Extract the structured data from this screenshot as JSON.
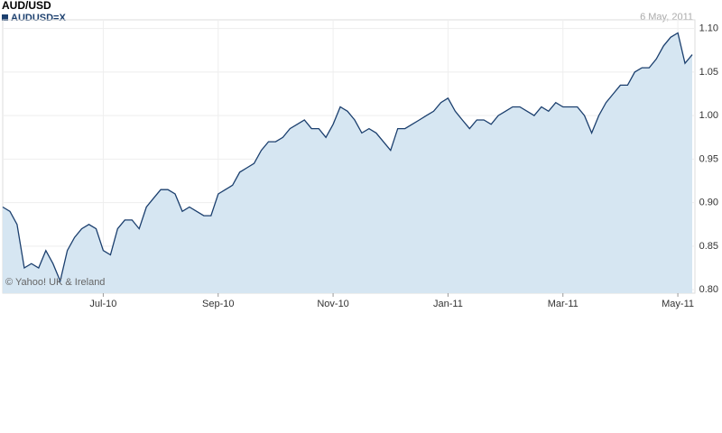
{
  "chart_data": {
    "type": "line",
    "title": "AUD/USD",
    "subtitle": "6 May, 2011",
    "annotation": "© Yahoo! UK & Ireland",
    "categories": [
      null,
      null,
      null,
      null,
      null,
      null,
      null,
      null,
      null,
      null,
      null,
      null,
      null,
      null,
      "Jul-10",
      null,
      null,
      null,
      null,
      null,
      null,
      null,
      null,
      null,
      null,
      null,
      null,
      null,
      null,
      null,
      "Sep-10",
      null,
      null,
      null,
      null,
      null,
      null,
      null,
      null,
      null,
      null,
      null,
      null,
      null,
      null,
      null,
      "Nov-10",
      null,
      null,
      null,
      null,
      null,
      null,
      null,
      null,
      null,
      null,
      null,
      null,
      null,
      null,
      null,
      "Jan-11",
      null,
      null,
      null,
      null,
      null,
      null,
      null,
      null,
      null,
      null,
      null,
      null,
      null,
      null,
      null,
      "Mar-11",
      null,
      null,
      null,
      null,
      null,
      null,
      null,
      null,
      null,
      null,
      null,
      null,
      null,
      null,
      null,
      "May-11",
      null,
      null
    ],
    "series": [
      {
        "name": "AUDUSD=X",
        "color": "#1b3f6e",
        "fill": "#d6e6f2",
        "values": [
          0.895,
          0.89,
          0.875,
          0.825,
          0.83,
          0.825,
          0.845,
          0.83,
          0.81,
          0.845,
          0.86,
          0.87,
          0.875,
          0.87,
          0.845,
          0.84,
          0.87,
          0.88,
          0.88,
          0.87,
          0.895,
          0.905,
          0.915,
          0.915,
          0.91,
          0.89,
          0.895,
          0.89,
          0.885,
          0.885,
          0.91,
          0.915,
          0.92,
          0.935,
          0.94,
          0.945,
          0.96,
          0.97,
          0.97,
          0.975,
          0.985,
          0.99,
          0.995,
          0.985,
          0.985,
          0.975,
          0.99,
          1.01,
          1.005,
          0.995,
          0.98,
          0.985,
          0.98,
          0.97,
          0.96,
          0.985,
          0.985,
          0.99,
          0.995,
          1.0,
          1.005,
          1.015,
          1.02,
          1.005,
          0.995,
          0.985,
          0.995,
          0.995,
          0.99,
          1.0,
          1.005,
          1.01,
          1.01,
          1.005,
          1.0,
          1.01,
          1.005,
          1.015,
          1.01,
          1.01,
          1.01,
          1.0,
          0.98,
          1.0,
          1.015,
          1.025,
          1.035,
          1.035,
          1.05,
          1.055,
          1.055,
          1.065,
          1.08,
          1.09,
          1.095,
          1.06,
          1.07
        ]
      }
    ],
    "ylim": [
      0.796,
      1.11
    ],
    "yticks": [
      {
        "value": 0.8,
        "label": "0.80"
      },
      0.85,
      {
        "value": 0.9,
        "label": "0.90"
      },
      0.95,
      {
        "value": 1.0,
        "label": "1.00"
      },
      1.05,
      {
        "value": 1.1,
        "label": "1.10"
      }
    ],
    "grid": true
  }
}
